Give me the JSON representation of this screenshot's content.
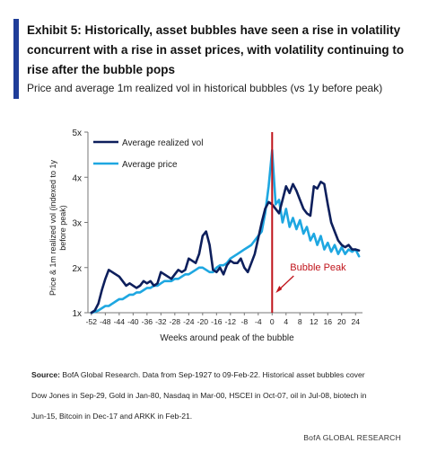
{
  "header": {
    "title_lines": [
      "Exhibit 5: Historically, asset bubbles have seen a rise in volatility",
      "concurrent with a rise in asset prices, with volatility continuing to",
      "rise after the bubble pops"
    ],
    "subtitle": "Price and average 1m realized vol in historical bubbles (vs 1y before peak)"
  },
  "source": {
    "label": "Source:",
    "lines": [
      " BofA Global Research. Data from Sep-1927 to 09-Feb-22. Historical asset bubbles cover",
      "Dow Jones in Sep-29, Gold in Jan-80, Nasdaq in Mar-00, HSCEI in Oct-07, oil in Jul-08, biotech in",
      "Jun-15, Bitcoin in Dec-17 and ARKK in Feb-21."
    ]
  },
  "footer": "BofA GLOBAL RESEARCH",
  "chart_data": {
    "type": "line",
    "xlabel": "Weeks around peak of the bubble",
    "ylabel": "Price & 1m realized vol (indexed to 1y before peak)",
    "xlim": [
      -53,
      26
    ],
    "ylim": [
      1,
      5
    ],
    "x_ticks": [
      -52,
      -48,
      -44,
      -40,
      -36,
      -32,
      -28,
      -24,
      -20,
      -16,
      -12,
      -8,
      -4,
      0,
      4,
      8,
      12,
      16,
      20,
      24
    ],
    "y_ticks": [
      1,
      2,
      3,
      4,
      5
    ],
    "y_tick_labels": [
      "1x",
      "2x",
      "3x",
      "4x",
      "5x"
    ],
    "grid": false,
    "legend_position": "top-left",
    "annotation": {
      "label": "Bubble Peak",
      "x": 0
    },
    "colors": {
      "vol": "#0d1f5c",
      "price": "#1ea7e1",
      "peak": "#c0141b",
      "accent": "#1f3d99"
    },
    "series": [
      {
        "name": "Average realized vol",
        "x": [
          -52,
          -51,
          -50,
          -49,
          -48,
          -47,
          -46,
          -45,
          -44,
          -43,
          -42,
          -41,
          -40,
          -39,
          -38,
          -37,
          -36,
          -35,
          -34,
          -33,
          -32,
          -31,
          -30,
          -29,
          -28,
          -27,
          -26,
          -25,
          -24,
          -23,
          -22,
          -21,
          -20,
          -19,
          -18,
          -17,
          -16,
          -15,
          -14,
          -13,
          -12,
          -11,
          -10,
          -9,
          -8,
          -7,
          -6,
          -5,
          -4,
          -3,
          -2,
          -1,
          0,
          1,
          2,
          3,
          4,
          5,
          6,
          7,
          8,
          9,
          10,
          11,
          12,
          13,
          14,
          15,
          16,
          17,
          18,
          19,
          20,
          21,
          22,
          23,
          24,
          25
        ],
        "values": [
          1.0,
          1.05,
          1.2,
          1.5,
          1.75,
          1.95,
          1.9,
          1.85,
          1.8,
          1.7,
          1.6,
          1.65,
          1.6,
          1.55,
          1.6,
          1.7,
          1.65,
          1.7,
          1.6,
          1.65,
          1.9,
          1.85,
          1.8,
          1.75,
          1.85,
          1.95,
          1.9,
          1.95,
          2.2,
          2.15,
          2.1,
          2.3,
          2.7,
          2.8,
          2.5,
          1.95,
          1.9,
          2.0,
          1.85,
          2.05,
          2.15,
          2.1,
          2.1,
          2.2,
          2.0,
          1.9,
          2.1,
          2.3,
          2.65,
          3.0,
          3.3,
          3.45,
          3.4,
          3.3,
          3.2,
          3.5,
          3.8,
          3.65,
          3.85,
          3.7,
          3.5,
          3.3,
          3.2,
          3.15,
          3.8,
          3.75,
          3.9,
          3.85,
          3.4,
          3.0,
          2.8,
          2.6,
          2.5,
          2.45,
          2.5,
          2.4,
          2.4,
          2.38
        ]
      },
      {
        "name": "Average price",
        "x": [
          -52,
          -51,
          -50,
          -49,
          -48,
          -47,
          -46,
          -45,
          -44,
          -43,
          -42,
          -41,
          -40,
          -39,
          -38,
          -37,
          -36,
          -35,
          -34,
          -33,
          -32,
          -31,
          -30,
          -29,
          -28,
          -27,
          -26,
          -25,
          -24,
          -23,
          -22,
          -21,
          -20,
          -19,
          -18,
          -17,
          -16,
          -15,
          -14,
          -13,
          -12,
          -11,
          -10,
          -9,
          -8,
          -7,
          -6,
          -5,
          -4,
          -3,
          -2,
          -1,
          0,
          1,
          2,
          3,
          4,
          5,
          6,
          7,
          8,
          9,
          10,
          11,
          12,
          13,
          14,
          15,
          16,
          17,
          18,
          19,
          20,
          21,
          22,
          23,
          24,
          25
        ],
        "values": [
          1.0,
          1.02,
          1.05,
          1.1,
          1.15,
          1.15,
          1.2,
          1.25,
          1.3,
          1.3,
          1.35,
          1.4,
          1.4,
          1.45,
          1.45,
          1.5,
          1.55,
          1.55,
          1.6,
          1.6,
          1.65,
          1.7,
          1.7,
          1.7,
          1.75,
          1.75,
          1.8,
          1.85,
          1.85,
          1.9,
          1.95,
          2.0,
          2.0,
          1.95,
          1.9,
          1.9,
          2.0,
          2.05,
          2.05,
          2.1,
          2.2,
          2.25,
          2.3,
          2.35,
          2.4,
          2.45,
          2.5,
          2.6,
          2.7,
          2.8,
          3.2,
          3.8,
          4.6,
          3.4,
          3.5,
          3.0,
          3.3,
          2.9,
          3.1,
          2.85,
          3.05,
          2.75,
          2.9,
          2.6,
          2.75,
          2.5,
          2.7,
          2.4,
          2.55,
          2.35,
          2.5,
          2.3,
          2.45,
          2.3,
          2.4,
          2.35,
          2.4,
          2.25
        ]
      }
    ]
  }
}
